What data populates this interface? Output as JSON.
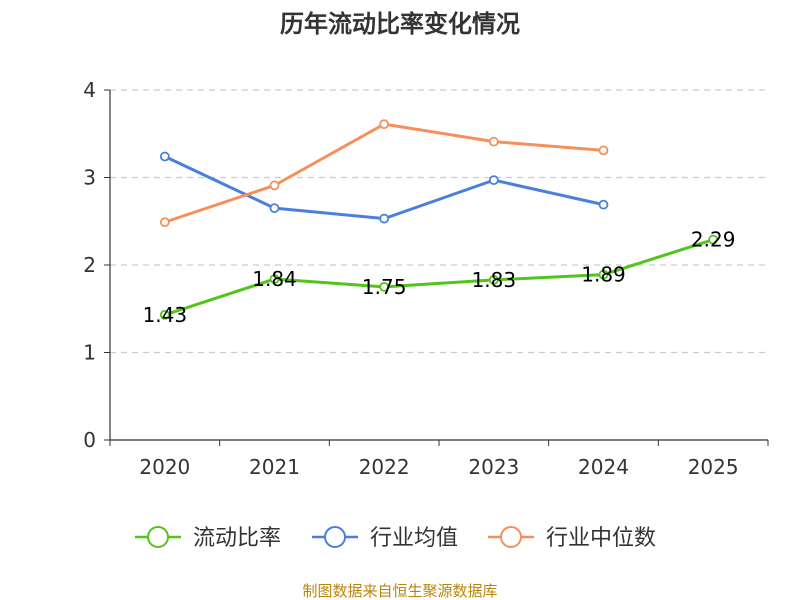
{
  "chart_data": {
    "type": "line",
    "title": "历年流动比率变化情况",
    "categories": [
      "2020",
      "2021",
      "2022",
      "2023",
      "2024",
      "2025"
    ],
    "ylim": [
      0,
      4
    ],
    "yticks": [
      0,
      1,
      2,
      3,
      4
    ],
    "grid": true,
    "legend_position": "bottom",
    "series": [
      {
        "name": "流动比率",
        "color": "#52c41a",
        "values": [
          1.43,
          1.84,
          1.75,
          1.83,
          1.89,
          2.29
        ],
        "labels": [
          "1.43",
          "1.84",
          "1.75",
          "1.83",
          "1.89",
          "2.29"
        ]
      },
      {
        "name": "行业均值",
        "color": "#4a7fdb",
        "values": [
          3.24,
          2.65,
          2.53,
          2.97,
          2.69,
          null
        ]
      },
      {
        "name": "行业中位数",
        "color": "#f5905c",
        "values": [
          2.49,
          2.91,
          3.61,
          3.41,
          3.31,
          null
        ]
      }
    ]
  },
  "source": {
    "text": "制图数据来自恒生聚源数据库",
    "color": "#b8860b"
  }
}
